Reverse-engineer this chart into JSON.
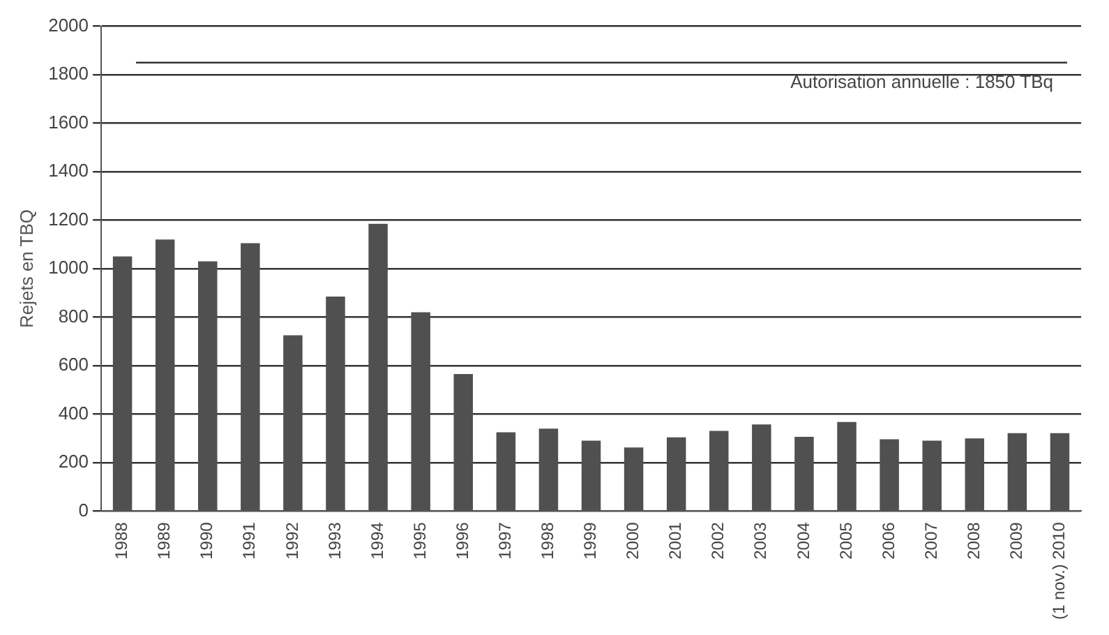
{
  "chart_data": {
    "type": "bar",
    "ylabel": "Rejets en TBQ",
    "categories": [
      "1988",
      "1989",
      "1990",
      "1991",
      "1992",
      "1993",
      "1994",
      "1995",
      "1996",
      "1997",
      "1998",
      "1999",
      "2000",
      "2001",
      "2002",
      "2003",
      "2004",
      "2005",
      "2006",
      "2007",
      "2008",
      "2009",
      "(1 nov.) 2010"
    ],
    "values": [
      1050,
      1120,
      1030,
      1105,
      725,
      885,
      1185,
      820,
      565,
      325,
      340,
      290,
      262,
      304,
      331,
      357,
      306,
      367,
      296,
      290,
      300,
      321,
      321
    ],
    "color": "#505050",
    "ylim": [
      0,
      2000
    ],
    "yticks": [
      0,
      200,
      400,
      600,
      800,
      1000,
      1200,
      1400,
      1600,
      1800,
      2000
    ],
    "grid": "y",
    "ref_lines": [
      {
        "axis": "y",
        "value": 1850,
        "label": "Autorisation annuelle : 1850 TBq",
        "color": "#333333"
      }
    ]
  }
}
